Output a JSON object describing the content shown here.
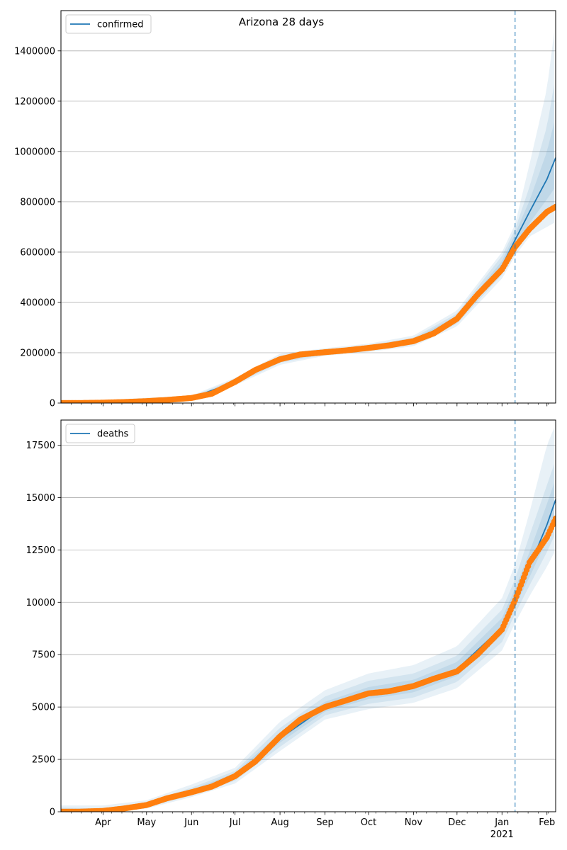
{
  "figure": {
    "suptitle": "Arizona 28 days"
  },
  "chart_data": [
    {
      "type": "line",
      "legend": {
        "label": "confirmed",
        "placement": "top-left"
      },
      "grid": "horizontal",
      "x_axis": {
        "range": [
          "2020-03-03",
          "2021-02-07"
        ],
        "ticks": [
          {
            "date": "2020-04-01",
            "label": ""
          },
          {
            "date": "2020-05-01",
            "label": ""
          },
          {
            "date": "2020-06-01",
            "label": ""
          },
          {
            "date": "2020-07-01",
            "label": ""
          },
          {
            "date": "2020-08-01",
            "label": ""
          },
          {
            "date": "2020-09-01",
            "label": ""
          },
          {
            "date": "2020-10-01",
            "label": ""
          },
          {
            "date": "2020-11-01",
            "label": ""
          },
          {
            "date": "2020-12-01",
            "label": ""
          },
          {
            "date": "2021-01-01",
            "label": ""
          },
          {
            "date": "2021-02-01",
            "label": ""
          }
        ]
      },
      "y_axis": {
        "range": [
          0,
          1560000
        ],
        "ticks": [
          0,
          200000,
          400000,
          600000,
          800000,
          1000000,
          1200000,
          1400000
        ],
        "tick_labels": [
          "0",
          "200000",
          "400000",
          "600000",
          "800000",
          "1000000",
          "1200000",
          "1400000"
        ]
      },
      "forecast_start": "2021-01-10",
      "observed": {
        "color": "#ff7f0e",
        "points": [
          [
            "2020-03-03",
            1
          ],
          [
            "2020-03-15",
            13
          ],
          [
            "2020-04-01",
            1500
          ],
          [
            "2020-04-15",
            3800
          ],
          [
            "2020-05-01",
            7600
          ],
          [
            "2020-05-15",
            12200
          ],
          [
            "2020-06-01",
            20100
          ],
          [
            "2020-06-15",
            37000
          ],
          [
            "2020-07-01",
            84100
          ],
          [
            "2020-07-15",
            131400
          ],
          [
            "2020-08-01",
            174000
          ],
          [
            "2020-08-15",
            193000
          ],
          [
            "2020-09-01",
            202000
          ],
          [
            "2020-09-15",
            209000
          ],
          [
            "2020-10-01",
            219000
          ],
          [
            "2020-10-15",
            229000
          ],
          [
            "2020-11-01",
            246000
          ],
          [
            "2020-11-15",
            277000
          ],
          [
            "2020-12-01",
            335000
          ],
          [
            "2020-12-15",
            430000
          ],
          [
            "2021-01-01",
            531000
          ],
          [
            "2021-01-10",
            620000
          ],
          [
            "2021-01-20",
            692000
          ],
          [
            "2021-02-01",
            760000
          ],
          [
            "2021-02-07",
            780000
          ]
        ]
      },
      "model": {
        "name": "confirmed",
        "color": "#1f77b4",
        "points": [
          [
            "2020-03-03",
            0
          ],
          [
            "2020-04-01",
            1500
          ],
          [
            "2020-05-01",
            7600
          ],
          [
            "2020-06-01",
            20100
          ],
          [
            "2020-07-01",
            84100
          ],
          [
            "2020-08-01",
            174000
          ],
          [
            "2020-09-01",
            202000
          ],
          [
            "2020-10-01",
            219000
          ],
          [
            "2020-11-01",
            246000
          ],
          [
            "2020-12-01",
            335000
          ],
          [
            "2021-01-01",
            545000
          ],
          [
            "2021-01-10",
            648000
          ],
          [
            "2021-01-20",
            760000
          ],
          [
            "2021-02-01",
            890000
          ],
          [
            "2021-02-07",
            975000
          ]
        ],
        "band_color": "#1f77b4",
        "bands": [
          {
            "points": [
              [
                "2020-03-03",
                0,
                3000
              ],
              [
                "2020-06-01",
                10000,
                30000
              ],
              [
                "2020-07-01",
                70000,
                100000
              ],
              [
                "2020-08-01",
                152000,
                196000
              ],
              [
                "2020-09-01",
                188000,
                218000
              ],
              [
                "2020-10-01",
                203000,
                236000
              ],
              [
                "2020-11-01",
                226000,
                268000
              ],
              [
                "2020-12-01",
                305000,
                368000
              ],
              [
                "2021-01-01",
                495000,
                600000
              ],
              [
                "2021-01-10",
                585000,
                710000
              ],
              [
                "2021-01-20",
                662000,
                950000
              ],
              [
                "2021-02-01",
                700000,
                1250000
              ],
              [
                "2021-02-07",
                720000,
                1520000
              ]
            ]
          },
          {
            "points": [
              [
                "2020-03-03",
                0,
                2000
              ],
              [
                "2020-06-01",
                13000,
                26000
              ],
              [
                "2020-07-01",
                75000,
                94000
              ],
              [
                "2020-08-01",
                160000,
                188000
              ],
              [
                "2020-09-01",
                193000,
                212000
              ],
              [
                "2020-10-01",
                208000,
                230000
              ],
              [
                "2020-11-01",
                233000,
                260000
              ],
              [
                "2020-12-01",
                315000,
                356000
              ],
              [
                "2021-01-01",
                510000,
                585000
              ],
              [
                "2021-01-10",
                605000,
                690000
              ],
              [
                "2021-01-20",
                690000,
                860000
              ],
              [
                "2021-02-01",
                760000,
                1100000
              ],
              [
                "2021-02-07",
                790000,
                1300000
              ]
            ]
          },
          {
            "points": [
              [
                "2020-03-03",
                0,
                1200
              ],
              [
                "2020-06-01",
                16000,
                23000
              ],
              [
                "2020-07-01",
                79000,
                89000
              ],
              [
                "2020-08-01",
                166000,
                182000
              ],
              [
                "2020-09-01",
                197000,
                207000
              ],
              [
                "2020-10-01",
                213000,
                225000
              ],
              [
                "2020-11-01",
                239000,
                254000
              ],
              [
                "2020-12-01",
                323000,
                347000
              ],
              [
                "2021-01-01",
                525000,
                565000
              ],
              [
                "2021-01-10",
                622000,
                672000
              ],
              [
                "2021-01-20",
                715000,
                805000
              ],
              [
                "2021-02-01",
                810000,
                1000000
              ],
              [
                "2021-02-07",
                860000,
                1140000
              ]
            ]
          }
        ]
      }
    },
    {
      "type": "line",
      "legend": {
        "label": "deaths",
        "placement": "top-left"
      },
      "grid": "horizontal",
      "x_axis": {
        "range": [
          "2020-03-03",
          "2021-02-07"
        ],
        "ticks": [
          {
            "date": "2020-04-01",
            "label": "Apr"
          },
          {
            "date": "2020-05-01",
            "label": "May"
          },
          {
            "date": "2020-06-01",
            "label": "Jun"
          },
          {
            "date": "2020-07-01",
            "label": "Jul"
          },
          {
            "date": "2020-08-01",
            "label": "Aug"
          },
          {
            "date": "2020-09-01",
            "label": "Sep"
          },
          {
            "date": "2020-10-01",
            "label": "Oct"
          },
          {
            "date": "2020-11-01",
            "label": "Nov"
          },
          {
            "date": "2020-12-01",
            "label": "Dec"
          },
          {
            "date": "2021-01-01",
            "label": "Jan"
          },
          {
            "date": "2021-02-01",
            "label": "Feb"
          }
        ],
        "year_label": {
          "date": "2021-01-01",
          "label": "2021"
        }
      },
      "y_axis": {
        "range": [
          0,
          18700
        ],
        "ticks": [
          0,
          2500,
          5000,
          7500,
          10000,
          12500,
          15000,
          17500
        ],
        "tick_labels": [
          "0",
          "2500",
          "5000",
          "7500",
          "10000",
          "12500",
          "15000",
          "17500"
        ]
      },
      "forecast_start": "2021-01-10",
      "observed": {
        "color": "#ff7f0e",
        "points": [
          [
            "2020-03-03",
            0
          ],
          [
            "2020-03-15",
            0
          ],
          [
            "2020-04-01",
            40
          ],
          [
            "2020-04-15",
            150
          ],
          [
            "2020-05-01",
            320
          ],
          [
            "2020-05-15",
            640
          ],
          [
            "2020-06-01",
            930
          ],
          [
            "2020-06-15",
            1200
          ],
          [
            "2020-07-01",
            1700
          ],
          [
            "2020-07-15",
            2400
          ],
          [
            "2020-08-01",
            3600
          ],
          [
            "2020-08-15",
            4400
          ],
          [
            "2020-09-01",
            5000
          ],
          [
            "2020-09-15",
            5300
          ],
          [
            "2020-10-01",
            5650
          ],
          [
            "2020-10-15",
            5750
          ],
          [
            "2020-11-01",
            6000
          ],
          [
            "2020-11-15",
            6350
          ],
          [
            "2020-12-01",
            6700
          ],
          [
            "2020-12-15",
            7500
          ],
          [
            "2021-01-01",
            8700
          ],
          [
            "2021-01-10",
            10100
          ],
          [
            "2021-01-20",
            11900
          ],
          [
            "2021-02-01",
            13100
          ],
          [
            "2021-02-07",
            14000
          ]
        ]
      },
      "model": {
        "name": "deaths",
        "color": "#1f77b4",
        "points": [
          [
            "2020-03-03",
            0
          ],
          [
            "2020-04-01",
            40
          ],
          [
            "2020-05-01",
            320
          ],
          [
            "2020-06-01",
            930
          ],
          [
            "2020-07-01",
            1700
          ],
          [
            "2020-08-01",
            3500
          ],
          [
            "2020-09-01",
            5000
          ],
          [
            "2020-10-01",
            5650
          ],
          [
            "2020-11-01",
            6000
          ],
          [
            "2020-12-01",
            6800
          ],
          [
            "2021-01-01",
            8800
          ],
          [
            "2021-01-10",
            10200
          ],
          [
            "2021-01-20",
            11700
          ],
          [
            "2021-02-01",
            13700
          ],
          [
            "2021-02-07",
            14900
          ]
        ],
        "band_color": "#1f77b4",
        "bands": [
          {
            "points": [
              [
                "2020-03-03",
                0,
                300
              ],
              [
                "2020-04-01",
                0,
                300
              ],
              [
                "2020-05-01",
                150,
                550
              ],
              [
                "2020-06-01",
                700,
                1300
              ],
              [
                "2020-07-01",
                1350,
                2100
              ],
              [
                "2020-08-01",
                2900,
                4300
              ],
              [
                "2020-09-01",
                4400,
                5800
              ],
              [
                "2020-10-01",
                4900,
                6600
              ],
              [
                "2020-11-01",
                5200,
                7000
              ],
              [
                "2020-12-01",
                5900,
                7900
              ],
              [
                "2021-01-01",
                7700,
                10200
              ],
              [
                "2021-01-10",
                9000,
                11800
              ],
              [
                "2021-01-20",
                10300,
                14300
              ],
              [
                "2021-02-01",
                11700,
                17500
              ],
              [
                "2021-02-07",
                12500,
                18500
              ]
            ]
          },
          {
            "points": [
              [
                "2020-03-03",
                0,
                200
              ],
              [
                "2020-04-01",
                10,
                160
              ],
              [
                "2020-05-01",
                210,
                460
              ],
              [
                "2020-06-01",
                780,
                1150
              ],
              [
                "2020-07-01",
                1480,
                1950
              ],
              [
                "2020-08-01",
                3100,
                4000
              ],
              [
                "2020-09-01",
                4600,
                5500
              ],
              [
                "2020-10-01",
                5150,
                6250
              ],
              [
                "2020-11-01",
                5450,
                6600
              ],
              [
                "2020-12-01",
                6200,
                7450
              ],
              [
                "2021-01-01",
                8100,
                9650
              ],
              [
                "2021-01-10",
                9450,
                11100
              ],
              [
                "2021-01-20",
                10800,
                13200
              ],
              [
                "2021-02-01",
                12400,
                15600
              ],
              [
                "2021-02-07",
                13300,
                16800
              ]
            ]
          },
          {
            "points": [
              [
                "2020-03-03",
                0,
                100
              ],
              [
                "2020-04-01",
                20,
                90
              ],
              [
                "2020-05-01",
                260,
                400
              ],
              [
                "2020-06-01",
                840,
                1050
              ],
              [
                "2020-07-01",
                1580,
                1850
              ],
              [
                "2020-08-01",
                3300,
                3750
              ],
              [
                "2020-09-01",
                4780,
                5250
              ],
              [
                "2020-10-01",
                5380,
                5950
              ],
              [
                "2020-11-01",
                5700,
                6300
              ],
              [
                "2020-12-01",
                6480,
                7150
              ],
              [
                "2021-01-01",
                8450,
                9250
              ],
              [
                "2021-01-10",
                9800,
                10650
              ],
              [
                "2021-01-20",
                11200,
                12400
              ],
              [
                "2021-02-01",
                13000,
                14700
              ],
              [
                "2021-02-07",
                14000,
                15900
              ]
            ]
          }
        ]
      }
    }
  ]
}
